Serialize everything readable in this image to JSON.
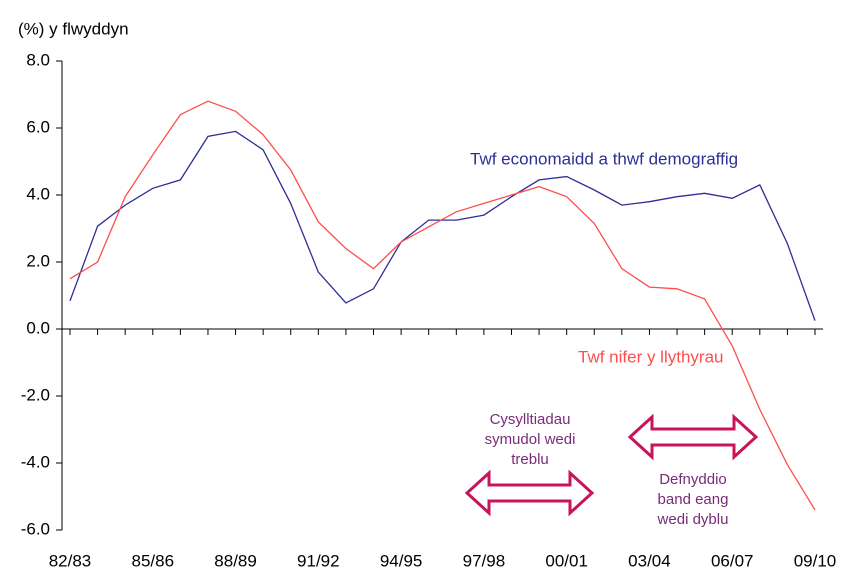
{
  "chart_data": {
    "type": "line",
    "y_label": "(%) y flwyddyn",
    "categories": [
      "82/83",
      null,
      null,
      "85/86",
      null,
      null,
      "88/89",
      null,
      null,
      "91/92",
      null,
      null,
      "94/95",
      null,
      null,
      "97/98",
      null,
      null,
      "00/01",
      null,
      null,
      "03/04",
      null,
      null,
      "06/07",
      null,
      null,
      "09/10"
    ],
    "series": [
      {
        "name": "Twf economaidd a thwf demograffig",
        "color": "#2e2e96",
        "values": [
          0.84,
          3.07,
          3.7,
          4.2,
          4.45,
          5.75,
          5.9,
          5.35,
          3.75,
          1.7,
          0.78,
          1.2,
          2.6,
          3.25,
          3.25,
          3.4,
          3.95,
          4.45,
          4.55,
          4.15,
          3.7,
          3.8,
          3.95,
          4.05,
          3.9,
          4.3,
          2.55,
          0.25
        ]
      },
      {
        "name": "Twf nifer y llythyrau",
        "color": "#ff4d4d",
        "values": [
          1.5,
          2.0,
          3.95,
          5.2,
          6.4,
          6.8,
          6.5,
          5.8,
          4.75,
          3.2,
          2.4,
          1.8,
          2.6,
          3.05,
          3.5,
          3.75,
          4.0,
          4.25,
          3.95,
          3.15,
          1.8,
          1.25,
          1.2,
          0.9,
          -0.5,
          -2.4,
          -4.05,
          -5.4
        ]
      }
    ],
    "ylim": [
      -6,
      8
    ],
    "yticks": [
      {
        "value": -6,
        "label": "-6.0"
      },
      {
        "value": -4,
        "label": "-4.0"
      },
      {
        "value": -2,
        "label": "-2.0"
      },
      {
        "value": 0,
        "label": "0.0"
      },
      {
        "value": 2,
        "label": "2.0"
      },
      {
        "value": 4,
        "label": "4.0"
      },
      {
        "value": 6,
        "label": "6.0"
      },
      {
        "value": 8,
        "label": "8.0"
      }
    ],
    "annotations": [
      {
        "lines": [
          "Cysylltiadau",
          "symudol wedi",
          "treblu"
        ],
        "color": "#7a2b7a"
      },
      {
        "lines": [
          "Defnyddio",
          "band eang",
          "wedi dyblu"
        ],
        "color": "#7a2b7a"
      }
    ]
  }
}
